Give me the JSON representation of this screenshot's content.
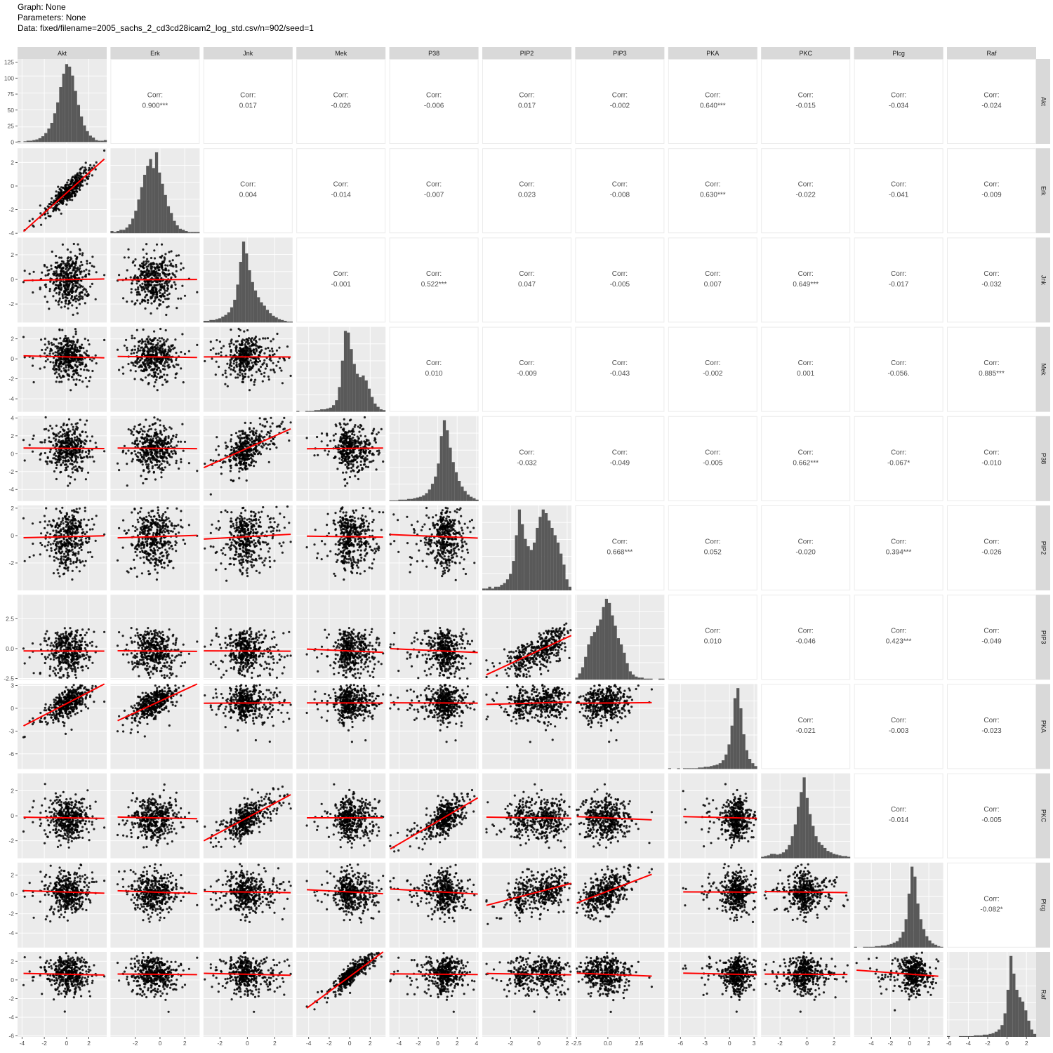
{
  "header": {
    "graph_line": "Graph: None",
    "params_line": "Parameters: None",
    "data_line": "Data: fixed/filename=2005_sachs_2_cd3cd28icam2_log_std.csv/n=902/seed=1"
  },
  "colors": {
    "panel_bg": "#ebebeb",
    "grid": "#ffffff",
    "strip_bg": "#d9d9d9",
    "points": "#000000",
    "fit_line": "#ff0000",
    "bars": "#595959",
    "text": "#4d4d4d"
  },
  "chart_data": {
    "type": "scatter-matrix",
    "variables": [
      "Akt",
      "Erk",
      "Jnk",
      "Mek",
      "P38",
      "PIP2",
      "PIP3",
      "PKA",
      "PKC",
      "Plcg",
      "Raf"
    ],
    "n": 902,
    "corr_label": "Corr:",
    "correlations": [
      {
        "row": "Akt",
        "col": "Erk",
        "value": "0.900***"
      },
      {
        "row": "Akt",
        "col": "Jnk",
        "value": "0.017"
      },
      {
        "row": "Akt",
        "col": "Mek",
        "value": "-0.026"
      },
      {
        "row": "Akt",
        "col": "P38",
        "value": "-0.006"
      },
      {
        "row": "Akt",
        "col": "PIP2",
        "value": "0.017"
      },
      {
        "row": "Akt",
        "col": "PIP3",
        "value": "-0.002"
      },
      {
        "row": "Akt",
        "col": "PKA",
        "value": "0.640***"
      },
      {
        "row": "Akt",
        "col": "PKC",
        "value": "-0.015"
      },
      {
        "row": "Akt",
        "col": "Plcg",
        "value": "-0.034"
      },
      {
        "row": "Akt",
        "col": "Raf",
        "value": "-0.024"
      },
      {
        "row": "Erk",
        "col": "Jnk",
        "value": "0.004"
      },
      {
        "row": "Erk",
        "col": "Mek",
        "value": "-0.014"
      },
      {
        "row": "Erk",
        "col": "P38",
        "value": "-0.007"
      },
      {
        "row": "Erk",
        "col": "PIP2",
        "value": "0.023"
      },
      {
        "row": "Erk",
        "col": "PIP3",
        "value": "-0.008"
      },
      {
        "row": "Erk",
        "col": "PKA",
        "value": "0.630***"
      },
      {
        "row": "Erk",
        "col": "PKC",
        "value": "-0.022"
      },
      {
        "row": "Erk",
        "col": "Plcg",
        "value": "-0.041"
      },
      {
        "row": "Erk",
        "col": "Raf",
        "value": "-0.009"
      },
      {
        "row": "Jnk",
        "col": "Mek",
        "value": "-0.001"
      },
      {
        "row": "Jnk",
        "col": "P38",
        "value": "0.522***"
      },
      {
        "row": "Jnk",
        "col": "PIP2",
        "value": "0.047"
      },
      {
        "row": "Jnk",
        "col": "PIP3",
        "value": "-0.005"
      },
      {
        "row": "Jnk",
        "col": "PKA",
        "value": "0.007"
      },
      {
        "row": "Jnk",
        "col": "PKC",
        "value": "0.649***"
      },
      {
        "row": "Jnk",
        "col": "Plcg",
        "value": "-0.017"
      },
      {
        "row": "Jnk",
        "col": "Raf",
        "value": "-0.032"
      },
      {
        "row": "Mek",
        "col": "P38",
        "value": "0.010"
      },
      {
        "row": "Mek",
        "col": "PIP2",
        "value": "-0.009"
      },
      {
        "row": "Mek",
        "col": "PIP3",
        "value": "-0.043"
      },
      {
        "row": "Mek",
        "col": "PKA",
        "value": "-0.002"
      },
      {
        "row": "Mek",
        "col": "PKC",
        "value": "0.001"
      },
      {
        "row": "Mek",
        "col": "Plcg",
        "value": "-0.056."
      },
      {
        "row": "Mek",
        "col": "Raf",
        "value": "0.885***"
      },
      {
        "row": "P38",
        "col": "PIP2",
        "value": "-0.032"
      },
      {
        "row": "P38",
        "col": "PIP3",
        "value": "-0.049"
      },
      {
        "row": "P38",
        "col": "PKA",
        "value": "-0.005"
      },
      {
        "row": "P38",
        "col": "PKC",
        "value": "0.662***"
      },
      {
        "row": "P38",
        "col": "Plcg",
        "value": "-0.067*"
      },
      {
        "row": "P38",
        "col": "Raf",
        "value": "-0.010"
      },
      {
        "row": "PIP2",
        "col": "PIP3",
        "value": "0.668***"
      },
      {
        "row": "PIP2",
        "col": "PKA",
        "value": "0.052"
      },
      {
        "row": "PIP2",
        "col": "PKC",
        "value": "-0.020"
      },
      {
        "row": "PIP2",
        "col": "Plcg",
        "value": "0.394***"
      },
      {
        "row": "PIP2",
        "col": "Raf",
        "value": "-0.026"
      },
      {
        "row": "PIP3",
        "col": "PKA",
        "value": "0.010"
      },
      {
        "row": "PIP3",
        "col": "PKC",
        "value": "-0.046"
      },
      {
        "row": "PIP3",
        "col": "Plcg",
        "value": "0.423***"
      },
      {
        "row": "PIP3",
        "col": "Raf",
        "value": "-0.049"
      },
      {
        "row": "PKA",
        "col": "PKC",
        "value": "-0.021"
      },
      {
        "row": "PKA",
        "col": "Plcg",
        "value": "-0.003"
      },
      {
        "row": "PKA",
        "col": "Raf",
        "value": "-0.023"
      },
      {
        "row": "PKC",
        "col": "Plcg",
        "value": "-0.014"
      },
      {
        "row": "PKC",
        "col": "Raf",
        "value": "-0.005"
      },
      {
        "row": "Plcg",
        "col": "Raf",
        "value": "-0.082*"
      }
    ],
    "x_axes": [
      {
        "var": "Akt",
        "min": -4.4,
        "max": 3.6,
        "ticks": [
          -4,
          -2,
          0,
          2
        ]
      },
      {
        "var": "Erk",
        "min": -4.0,
        "max": 3.2,
        "ticks": [
          -2,
          0,
          2
        ]
      },
      {
        "var": "Jnk",
        "min": -3.2,
        "max": 3.3,
        "ticks": [
          -2,
          0,
          2
        ]
      },
      {
        "var": "Mek",
        "min": -5.2,
        "max": 3.5,
        "ticks": [
          -4,
          -2,
          0,
          2
        ]
      },
      {
        "var": "P38",
        "min": -5.0,
        "max": 4.2,
        "ticks": [
          -4,
          -2,
          0,
          2,
          4
        ]
      },
      {
        "var": "PIP2",
        "min": -4.0,
        "max": 2.3,
        "ticks": [
          -2,
          0,
          2
        ]
      },
      {
        "var": "PIP3",
        "min": -2.6,
        "max": 4.5,
        "ticks": [
          -2.5,
          0.0,
          2.5
        ]
      },
      {
        "var": "PKA",
        "min": -7.5,
        "max": 3.4,
        "ticks": [
          -6,
          -3,
          0,
          3
        ]
      },
      {
        "var": "PKC",
        "min": -3.4,
        "max": 3.2,
        "ticks": [
          -2,
          0,
          2
        ]
      },
      {
        "var": "Plcg",
        "min": -5.8,
        "max": 3.5,
        "ticks": [
          -4,
          -2,
          0,
          2
        ]
      },
      {
        "var": "Raf",
        "min": -6.2,
        "max": 3.0,
        "ticks": [
          -6,
          -4,
          -2,
          0,
          2
        ]
      }
    ],
    "y_axes": [
      {
        "var": "Akt",
        "min": -3,
        "max": 130,
        "ticks": [
          0,
          25,
          50,
          75,
          100,
          125
        ],
        "note": "count axis of top-left histogram"
      },
      {
        "var": "Erk",
        "min": -4.0,
        "max": 3.2,
        "ticks": [
          -4,
          -2,
          0,
          2
        ]
      },
      {
        "var": "Jnk",
        "min": -3.5,
        "max": 3.4,
        "ticks": [
          -2,
          0,
          2
        ]
      },
      {
        "var": "Mek",
        "min": -5.3,
        "max": 3.2,
        "ticks": [
          -4,
          -2,
          0,
          2
        ]
      },
      {
        "var": "P38",
        "min": -5.3,
        "max": 4.2,
        "ticks": [
          -4,
          -2,
          0,
          2,
          4
        ]
      },
      {
        "var": "PIP2",
        "min": -4.0,
        "max": 2.2,
        "ticks": [
          -2,
          0,
          2
        ]
      },
      {
        "var": "PIP3",
        "min": -2.6,
        "max": 4.5,
        "ticks": [
          -2.5,
          0.0,
          2.5
        ]
      },
      {
        "var": "PKA",
        "min": -8.0,
        "max": 3.2,
        "ticks": [
          -6,
          -3,
          0,
          3
        ]
      },
      {
        "var": "PKC",
        "min": -3.4,
        "max": 3.4,
        "ticks": [
          -2,
          0,
          2
        ]
      },
      {
        "var": "Plcg",
        "min": -5.5,
        "max": 3.3,
        "ticks": [
          -4,
          -2,
          0,
          2
        ]
      },
      {
        "var": "Raf",
        "min": -6.1,
        "max": 3.0,
        "ticks": [
          -6,
          -4,
          -2,
          0,
          2
        ]
      }
    ],
    "histograms": [
      {
        "var": "Akt",
        "start": -4.4,
        "width": 0.267,
        "counts": [
          1,
          0,
          1,
          2,
          2,
          3,
          4,
          6,
          9,
          14,
          21,
          30,
          45,
          62,
          86,
          107,
          122,
          118,
          104,
          80,
          58,
          40,
          26,
          17,
          10,
          7,
          3,
          2,
          2,
          3
        ]
      },
      {
        "var": "Erk",
        "start": -4.0,
        "width": 0.24,
        "counts": [
          2,
          1,
          2,
          3,
          3,
          5,
          8,
          13,
          20,
          30,
          41,
          52,
          60,
          66,
          58,
          72,
          54,
          44,
          34,
          24,
          18,
          11,
          7,
          4,
          3,
          2,
          1,
          1,
          1,
          1
        ]
      },
      {
        "var": "Jnk",
        "start": -3.2,
        "width": 0.217,
        "counts": [
          2,
          2,
          3,
          3,
          4,
          5,
          7,
          9,
          12,
          18,
          27,
          45,
          72,
          96,
          82,
          62,
          48,
          38,
          30,
          24,
          20,
          15,
          11,
          8,
          6,
          4,
          3,
          2,
          1,
          1
        ]
      },
      {
        "var": "Mek",
        "start": -5.2,
        "width": 0.29,
        "counts": [
          1,
          0,
          0,
          1,
          1,
          1,
          2,
          2,
          3,
          3,
          4,
          5,
          8,
          14,
          30,
          62,
          98,
          96,
          76,
          58,
          46,
          42,
          44,
          38,
          28,
          18,
          10,
          6,
          3,
          2
        ]
      },
      {
        "var": "P38",
        "start": -5.0,
        "width": 0.307,
        "counts": [
          1,
          1,
          1,
          2,
          2,
          2,
          3,
          3,
          4,
          5,
          6,
          8,
          11,
          16,
          24,
          34,
          52,
          90,
          112,
          98,
          74,
          54,
          40,
          28,
          20,
          14,
          9,
          6,
          4,
          2
        ]
      },
      {
        "var": "PIP2",
        "start": -4.0,
        "width": 0.21,
        "counts": [
          1,
          1,
          2,
          1,
          2,
          2,
          3,
          4,
          6,
          9,
          16,
          30,
          44,
          36,
          28,
          24,
          22,
          26,
          34,
          40,
          44,
          42,
          38,
          34,
          30,
          26,
          20,
          14,
          6,
          2
        ]
      },
      {
        "var": "PIP3",
        "start": -2.6,
        "width": 0.237,
        "counts": [
          2,
          6,
          12,
          22,
          34,
          42,
          46,
          52,
          58,
          70,
          78,
          74,
          62,
          52,
          40,
          34,
          26,
          16,
          8,
          5,
          3,
          2,
          2,
          1,
          1,
          1,
          0,
          0,
          1,
          1
        ]
      },
      {
        "var": "PKA",
        "start": -7.5,
        "width": 0.363,
        "counts": [
          1,
          0,
          0,
          1,
          0,
          1,
          1,
          1,
          1,
          1,
          2,
          2,
          3,
          3,
          4,
          5,
          6,
          8,
          12,
          20,
          34,
          60,
          98,
          112,
          84,
          48,
          26,
          14,
          8,
          4
        ]
      },
      {
        "var": "PKC",
        "start": -3.4,
        "width": 0.22,
        "counts": [
          2,
          3,
          4,
          6,
          6,
          5,
          6,
          8,
          12,
          18,
          30,
          46,
          70,
          90,
          110,
          82,
          60,
          44,
          30,
          22,
          18,
          14,
          10,
          8,
          6,
          5,
          4,
          3,
          3,
          2
        ]
      },
      {
        "var": "Plcg",
        "start": -5.8,
        "width": 0.31,
        "counts": [
          1,
          0,
          0,
          1,
          1,
          1,
          1,
          2,
          2,
          3,
          3,
          4,
          5,
          7,
          9,
          14,
          22,
          40,
          76,
          114,
          100,
          62,
          40,
          26,
          16,
          10,
          6,
          4,
          2,
          1
        ]
      },
      {
        "var": "Raf",
        "start": -6.2,
        "width": 0.307,
        "counts": [
          1,
          0,
          0,
          0,
          1,
          1,
          1,
          1,
          1,
          2,
          2,
          2,
          3,
          3,
          4,
          5,
          7,
          10,
          16,
          32,
          64,
          110,
          86,
          64,
          54,
          48,
          36,
          22,
          10,
          4
        ]
      }
    ]
  }
}
